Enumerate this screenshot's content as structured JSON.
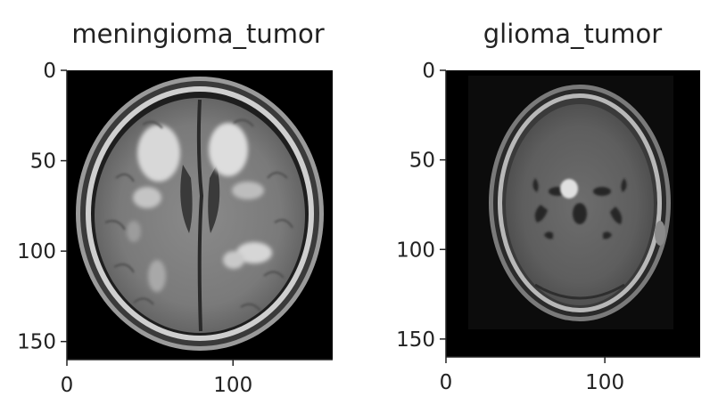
{
  "chart_data": [
    {
      "type": "image",
      "title": "meningioma_tumor",
      "image_subject": "axial brain MRI",
      "xlim": [
        0,
        160
      ],
      "ylim": [
        160,
        0
      ],
      "xticks": [
        0,
        100
      ],
      "yticks": [
        0,
        50,
        100,
        150
      ],
      "xticklabels": [
        "0",
        "100"
      ],
      "yticklabels": [
        "0",
        "50",
        "100",
        "150"
      ]
    },
    {
      "type": "image",
      "title": "glioma_tumor",
      "image_subject": "axial brain MRI",
      "xlim": [
        0,
        160
      ],
      "ylim": [
        160,
        0
      ],
      "xticks": [
        0,
        100
      ],
      "yticks": [
        0,
        50,
        100,
        150
      ],
      "xticklabels": [
        "0",
        "100"
      ],
      "yticklabels": [
        "0",
        "50",
        "100",
        "150"
      ]
    }
  ],
  "colors": {
    "background": "#ffffff",
    "axes_frame": "#222222",
    "text": "#222222"
  }
}
